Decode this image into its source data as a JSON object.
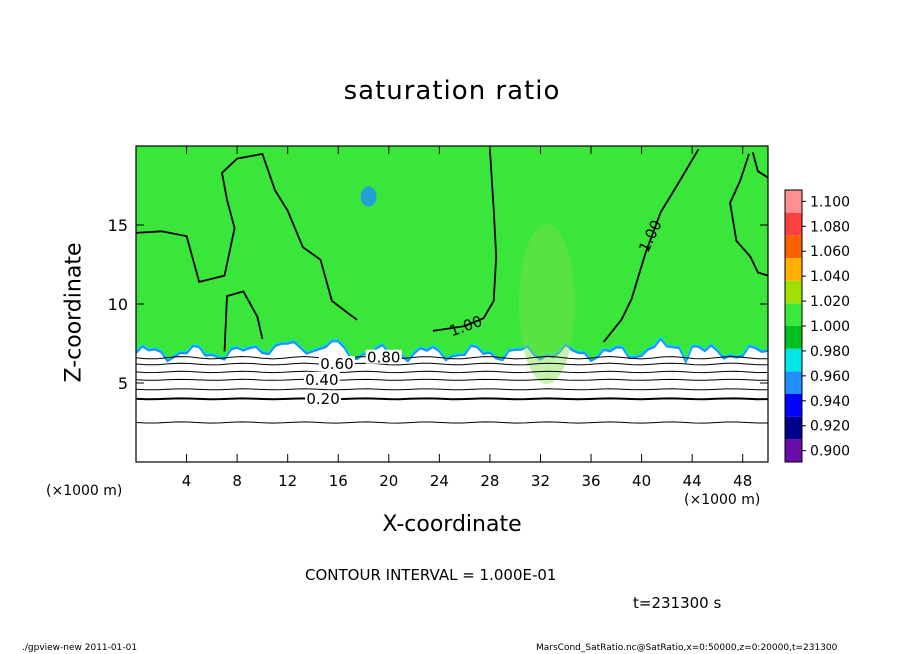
{
  "chart_data": {
    "type": "heatmap",
    "title": "saturation ratio",
    "xlabel": "X-coordinate",
    "ylabel": "Z-coordinate",
    "x_unit_label": "(×1000 m)",
    "x_unit_label_right": "(×1000 m)",
    "xlim": [
      0,
      50
    ],
    "ylim": [
      0,
      20
    ],
    "x_ticks": [
      4,
      8,
      12,
      16,
      20,
      24,
      28,
      32,
      36,
      40,
      44,
      48
    ],
    "y_ticks": [
      5,
      10,
      15
    ],
    "colorbar": {
      "levels": [
        0.9,
        0.92,
        0.94,
        0.96,
        0.98,
        1.0,
        1.02,
        1.04,
        1.06,
        1.08,
        1.1
      ],
      "labels": [
        "0.900",
        "0.920",
        "0.940",
        "0.960",
        "0.980",
        "1.000",
        "1.020",
        "1.040",
        "1.060",
        "1.080",
        "1.100"
      ],
      "colors": [
        "#6a0dad",
        "#00008b",
        "#0000ff",
        "#1e90ff",
        "#00e5e5",
        "#00c020",
        "#3aea3a",
        "#a0e000",
        "#ffb000",
        "#ff6000",
        "#ff4040",
        "#ff9090"
      ]
    },
    "field_color": "#3ae63a",
    "contour_labels": [
      {
        "text": "0.20",
        "x": 14.8,
        "z": 4.0
      },
      {
        "text": "0.40",
        "x": 14.7,
        "z": 5.2
      },
      {
        "text": "0.60",
        "x": 15.9,
        "z": 6.2
      },
      {
        "text": "0.80",
        "x": 19.6,
        "z": 6.6
      },
      {
        "text": "1.00",
        "x": 26.1,
        "z": 8.6
      },
      {
        "text": "1.00",
        "x": 40.7,
        "z": 14.3
      }
    ],
    "contour_interval": "CONTOUR INTERVAL = 1.000E-01",
    "time_label": "t=231300 s"
  },
  "footer": {
    "left": "./gpview-new   2011-01-01",
    "right": "MarsCond_SatRatio.nc@SatRatio,x=0:50000,z=0:20000,t=231300"
  }
}
